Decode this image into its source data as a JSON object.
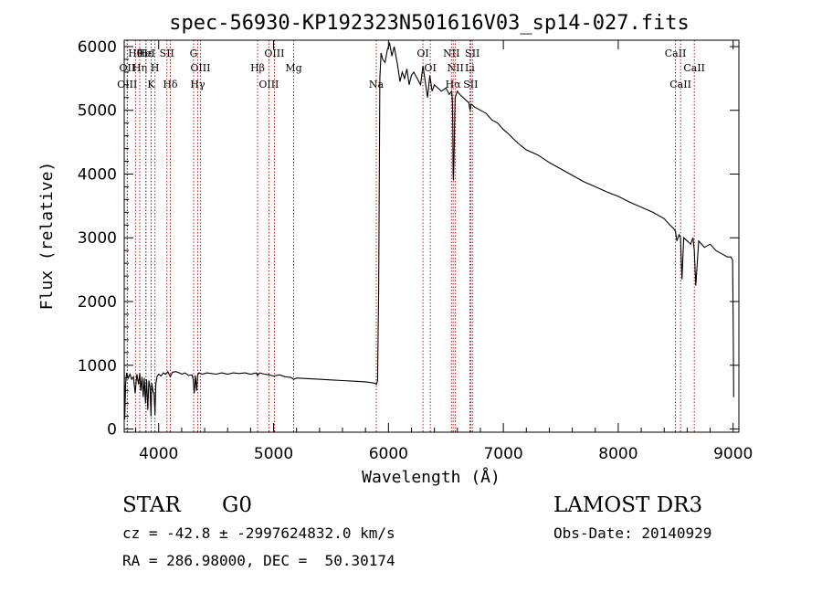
{
  "chart_data": {
    "type": "line",
    "title": "spec-56930-KP192323N501616V03_sp14-027.fits",
    "xlabel": "Wavelength (Å)",
    "ylabel": "Flux (relative)",
    "xlim": [
      3700,
      9050
    ],
    "ylim": [
      -50,
      6100
    ],
    "xticks": [
      4000,
      5000,
      6000,
      7000,
      8000,
      9000
    ],
    "yticks": [
      0,
      1000,
      2000,
      3000,
      4000,
      5000,
      6000
    ],
    "grid": false,
    "series": [
      {
        "name": "flux",
        "x": [
          3700,
          3705,
          3712,
          3720,
          3735,
          3750,
          3765,
          3780,
          3795,
          3810,
          3825,
          3835,
          3845,
          3855,
          3865,
          3875,
          3885,
          3895,
          3905,
          3915,
          3925,
          3933,
          3940,
          3950,
          3960,
          3968,
          3975,
          3985,
          4000,
          4020,
          4040,
          4060,
          4080,
          4101,
          4120,
          4150,
          4180,
          4200,
          4230,
          4260,
          4290,
          4300,
          4310,
          4320,
          4330,
          4340,
          4350,
          4380,
          4420,
          4460,
          4500,
          4550,
          4600,
          4650,
          4700,
          4750,
          4800,
          4850,
          4861,
          4880,
          4920,
          4960,
          5000,
          5050,
          5100,
          5150,
          5175,
          5200,
          5300,
          5400,
          5500,
          5600,
          5700,
          5800,
          5880,
          5895,
          5905,
          5915,
          5925,
          5935,
          5950,
          5970,
          5990,
          6010,
          6030,
          6050,
          6080,
          6100,
          6120,
          6140,
          6160,
          6180,
          6200,
          6220,
          6250,
          6280,
          6300,
          6320,
          6340,
          6360,
          6380,
          6400,
          6430,
          6460,
          6500,
          6530,
          6550,
          6556,
          6560,
          6563,
          6566,
          6570,
          6580,
          6600,
          6620,
          6650,
          6680,
          6700,
          6710,
          6720,
          6750,
          6800,
          6850,
          6900,
          6950,
          7000,
          7050,
          7100,
          7150,
          7200,
          7300,
          7400,
          7500,
          7600,
          7700,
          7800,
          7900,
          8000,
          8100,
          8200,
          8300,
          8400,
          8450,
          8480,
          8498,
          8510,
          8530,
          8542,
          8555,
          8570,
          8600,
          8630,
          8650,
          8662,
          8675,
          8700,
          8750,
          8800,
          8850,
          8900,
          8950,
          8980,
          8995,
          9000,
          9005
        ],
        "y": [
          1020,
          150,
          700,
          880,
          800,
          860,
          780,
          820,
          560,
          860,
          700,
          880,
          600,
          820,
          500,
          800,
          400,
          780,
          300,
          760,
          650,
          200,
          720,
          600,
          550,
          220,
          700,
          820,
          860,
          830,
          880,
          860,
          900,
          820,
          890,
          900,
          880,
          860,
          880,
          840,
          850,
          780,
          560,
          840,
          600,
          850,
          880,
          860,
          880,
          870,
          860,
          880,
          860,
          880,
          870,
          880,
          860,
          880,
          840,
          880,
          860,
          850,
          830,
          850,
          820,
          810,
          780,
          800,
          790,
          780,
          770,
          760,
          750,
          740,
          720,
          700,
          760,
          2200,
          5500,
          5900,
          5800,
          5750,
          5950,
          6050,
          5850,
          6000,
          5700,
          5450,
          5600,
          5500,
          5650,
          5400,
          5550,
          5600,
          5500,
          5400,
          5700,
          5450,
          5200,
          5550,
          5300,
          5400,
          5350,
          5300,
          5350,
          5250,
          5300,
          5150,
          4700,
          4000,
          3900,
          4200,
          5200,
          5300,
          5250,
          5200,
          5150,
          5120,
          5000,
          5100,
          5050,
          5000,
          4950,
          4850,
          4800,
          4700,
          4620,
          4530,
          4450,
          4380,
          4300,
          4180,
          4080,
          3980,
          3880,
          3800,
          3720,
          3650,
          3560,
          3480,
          3400,
          3300,
          3200,
          3150,
          3100,
          2950,
          3050,
          3000,
          2350,
          3000,
          2950,
          2900,
          3000,
          2800,
          2250,
          2950,
          2850,
          2900,
          2800,
          2750,
          2700,
          2700,
          2650,
          1800,
          500
        ]
      }
    ],
    "lines": [
      {
        "label": "Hθ",
        "x": 3798
      },
      {
        "label": "OII",
        "x": 3727
      },
      {
        "label": "OIII",
        "x": 3726
      },
      {
        "label": "Hε",
        "x": 3889
      },
      {
        "label": "Hη",
        "x": 3835
      },
      {
        "label": "K",
        "x": 3934
      },
      {
        "label": "HeI",
        "x": 3889
      },
      {
        "label": "H",
        "x": 3968
      },
      {
        "label": "Hδ",
        "x": 4101
      },
      {
        "label": "SII",
        "x": 4072
      },
      {
        "label": "OIII",
        "x": 4363
      },
      {
        "label": "Hγ",
        "x": 4340
      },
      {
        "label": "G",
        "x": 4304
      },
      {
        "label": "Hβ",
        "x": 4861
      },
      {
        "label": "OIII",
        "x": 4959
      },
      {
        "label": "OIII",
        "x": 5007
      },
      {
        "label": "Mg",
        "x": 5175
      },
      {
        "label": "Na",
        "x": 5894
      },
      {
        "label": "OI",
        "x": 6300
      },
      {
        "label": "OI",
        "x": 6364
      },
      {
        "label": "Hα",
        "x": 6563
      },
      {
        "label": "NII",
        "x": 6548
      },
      {
        "label": "NII",
        "x": 6583
      },
      {
        "label": "SII",
        "x": 6716
      },
      {
        "label": "SII",
        "x": 6731
      },
      {
        "label": "Li",
        "x": 6708
      },
      {
        "label": "CaII",
        "x": 8542
      },
      {
        "label": "CaII",
        "x": 8498
      },
      {
        "label": "CaII",
        "x": 8662
      }
    ]
  },
  "info": {
    "class": "STAR",
    "subclass": "G0",
    "survey": "LAMOST DR3",
    "cz": "cz = -42.8 ± -2997624832.0 km/s",
    "obs_date": "Obs-Date: 20140929",
    "radec": "RA = 286.98000, DEC =  50.30174"
  },
  "colors": {
    "spectrum": "#000000",
    "marker_line": "#aa0000",
    "axis": "#000000",
    "background": "#ffffff"
  }
}
